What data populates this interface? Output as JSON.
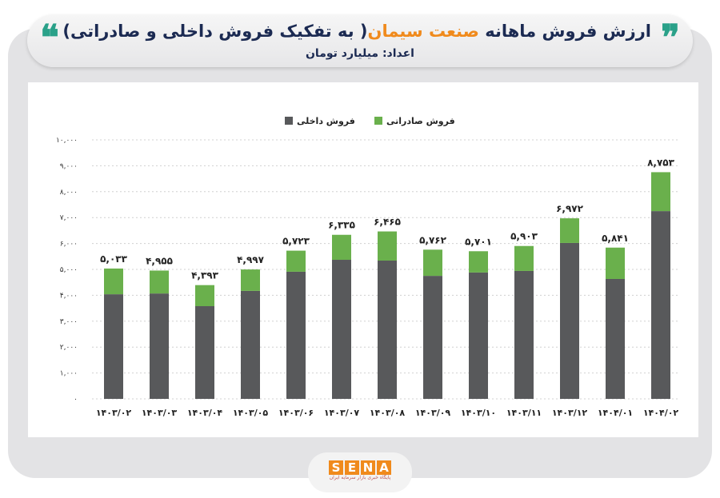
{
  "header": {
    "title_part1": "ارزش فروش ماهانه",
    "title_highlight": "صنعت سیمان",
    "title_part2": "( به تفکیک فروش داخلی و صادراتی)",
    "subtitle": "اعداد: میلیارد تومان",
    "quote_icon": "quote-marks-icon"
  },
  "colors": {
    "domestic": "#58595b",
    "export": "#6ab04c",
    "highlight": "#f08a1c",
    "title": "#1b2a52",
    "quote": "#2aa189"
  },
  "logo": {
    "text": "SENA",
    "tagline": "پایگاه خبری بازار سرمایه ایران"
  },
  "chart_data": {
    "type": "bar",
    "stacked": true,
    "categories": [
      "۱۴۰۳/۰۲",
      "۱۴۰۳/۰۳",
      "۱۴۰۳/۰۴",
      "۱۴۰۳/۰۵",
      "۱۴۰۳/۰۶",
      "۱۴۰۳/۰۷",
      "۱۴۰۳/۰۸",
      "۱۴۰۳/۰۹",
      "۱۴۰۳/۱۰",
      "۱۴۰۳/۱۱",
      "۱۴۰۳/۱۲",
      "۱۴۰۴/۰۱",
      "۱۴۰۴/۰۲"
    ],
    "series": [
      {
        "name": "فروش داخلی",
        "values": [
          4040,
          4070,
          3580,
          4170,
          4910,
          5370,
          5340,
          4750,
          4880,
          4940,
          6020,
          4630,
          7250
        ]
      },
      {
        "name": "فروش صادراتی",
        "values": [
          993,
          885,
          813,
          827,
          813,
          965,
          1125,
          1012,
          821,
          963,
          952,
          1211,
          1503
        ]
      }
    ],
    "totals": [
      5033,
      4955,
      4393,
      4997,
      5723,
      6335,
      6465,
      5762,
      5701,
      5903,
      6972,
      5841,
      8753
    ],
    "total_labels": [
      "۵,۰۳۳",
      "۴,۹۵۵",
      "۴,۳۹۳",
      "۴,۹۹۷",
      "۵,۷۲۳",
      "۶,۳۳۵",
      "۶,۴۶۵",
      "۵,۷۶۲",
      "۵,۷۰۱",
      "۵,۹۰۳",
      "۶,۹۷۲",
      "۵,۸۴۱",
      "۸,۷۵۳"
    ],
    "ylim": [
      0,
      10000
    ],
    "yticks": [
      0,
      1000,
      2000,
      3000,
      4000,
      5000,
      6000,
      7000,
      8000,
      9000,
      10000
    ],
    "ytick_labels": [
      "۰",
      "۱,۰۰۰",
      "۲,۰۰۰",
      "۳,۰۰۰",
      "۴,۰۰۰",
      "۵,۰۰۰",
      "۶,۰۰۰",
      "۷,۰۰۰",
      "۸,۰۰۰",
      "۹,۰۰۰",
      "۱۰,۰۰۰"
    ],
    "grid": true,
    "legend": "top-center",
    "title": "",
    "xlabel": "",
    "ylabel": ""
  }
}
